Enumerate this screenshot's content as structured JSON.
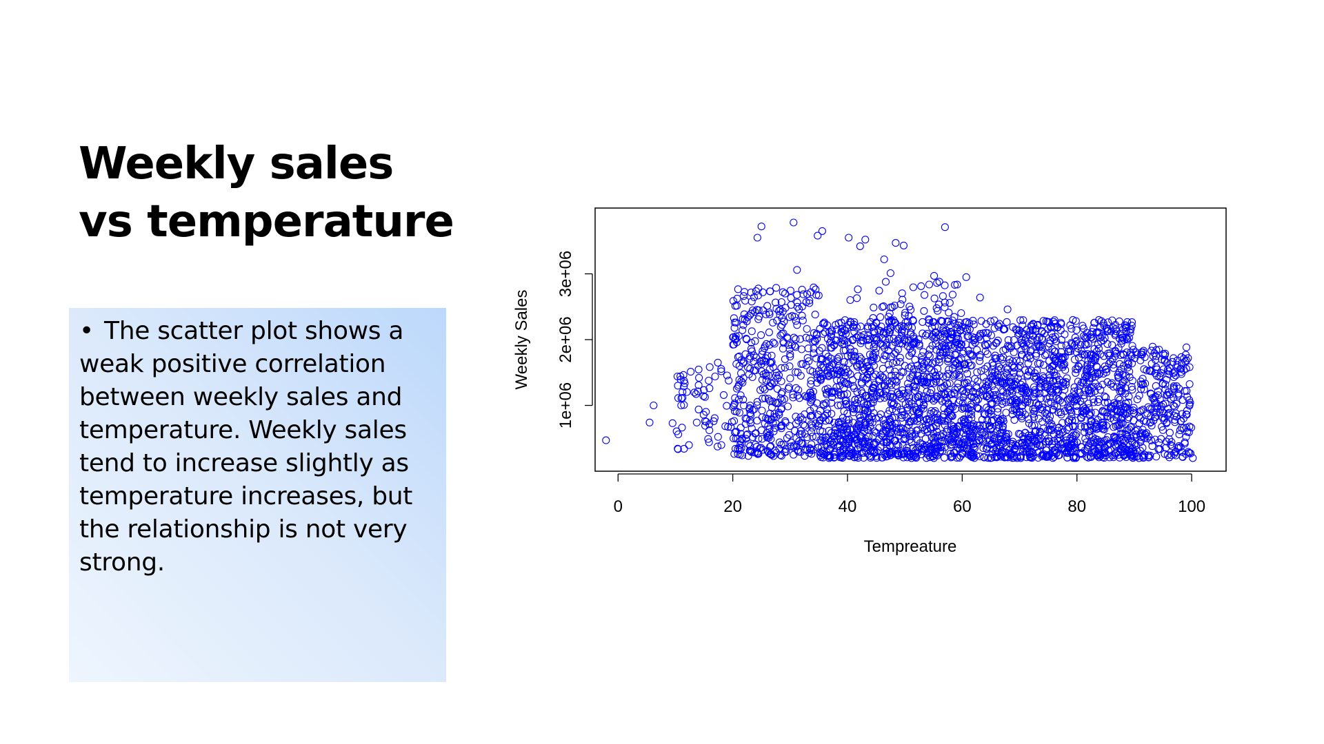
{
  "slide": {
    "title_line1": "Weekly sales",
    "title_line2": "vs temperature",
    "bullet_symbol": "•",
    "body_text": "The scatter plot shows a weak positive correlation between weekly sales and temperature. Weekly sales tend to increase slightly as temperature increases, but the relationship is not very strong."
  },
  "chart_data": {
    "type": "scatter",
    "title": "",
    "xlabel": "Tempreature",
    "ylabel": "Weekly Sales",
    "xlim": [
      -4,
      106
    ],
    "ylim": [
      0,
      4000000
    ],
    "x_ticks": [
      0,
      20,
      40,
      60,
      80,
      100
    ],
    "x_tick_labels": [
      "0",
      "20",
      "40",
      "60",
      "80",
      "100"
    ],
    "y_ticks": [
      1000000,
      2000000,
      3000000
    ],
    "y_tick_labels": [
      "1e+06",
      "2e+06",
      "3e+06"
    ],
    "grid": false,
    "legend": "none",
    "marker": "open-circle",
    "point_color": "#0000ff",
    "sample_points": [
      {
        "x": -2.1,
        "y": 470000
      },
      {
        "x": 5.5,
        "y": 740000
      },
      {
        "x": 6.2,
        "y": 1000000
      },
      {
        "x": 9.5,
        "y": 730000
      },
      {
        "x": 11,
        "y": 1000000
      },
      {
        "x": 17.4,
        "y": 1650000
      },
      {
        "x": 24.3,
        "y": 3550000
      },
      {
        "x": 25,
        "y": 3720000
      },
      {
        "x": 30.6,
        "y": 3780000
      },
      {
        "x": 31.2,
        "y": 3060000
      },
      {
        "x": 34.8,
        "y": 3580000
      },
      {
        "x": 35.6,
        "y": 3650000
      },
      {
        "x": 40.2,
        "y": 3550000
      },
      {
        "x": 42.2,
        "y": 3420000
      },
      {
        "x": 43.1,
        "y": 3520000
      },
      {
        "x": 46.4,
        "y": 3220000
      },
      {
        "x": 48.4,
        "y": 3470000
      },
      {
        "x": 49.8,
        "y": 3430000
      },
      {
        "x": 47.5,
        "y": 3010000
      },
      {
        "x": 55.1,
        "y": 2970000
      },
      {
        "x": 57,
        "y": 3710000
      },
      {
        "x": 60.7,
        "y": 2950000
      },
      {
        "x": 63.1,
        "y": 2640000
      },
      {
        "x": 67.9,
        "y": 2460000
      },
      {
        "x": 79.3,
        "y": 2300000
      },
      {
        "x": 86.3,
        "y": 2180000
      },
      {
        "x": 93.8,
        "y": 1750000
      },
      {
        "x": 96,
        "y": 1200000
      },
      {
        "x": 98.8,
        "y": 1220000
      },
      {
        "x": 99.2,
        "y": 920000
      },
      {
        "x": 100.2,
        "y": 200000
      },
      {
        "x": 10.5,
        "y": 560000
      }
    ],
    "cloud": [
      {
        "x_range": [
          10,
          20
        ],
        "y_range": [
          320000,
          1650000
        ],
        "count": 60
      },
      {
        "x_range": [
          20,
          35
        ],
        "y_range": [
          230000,
          2800000
        ],
        "count": 450
      },
      {
        "x_range": [
          35,
          90
        ],
        "y_range": [
          200000,
          2300000
        ],
        "count": 2400
      },
      {
        "x_range": [
          40,
          60
        ],
        "y_range": [
          1900000,
          2900000
        ],
        "count": 90
      },
      {
        "x_range": [
          90,
          100
        ],
        "y_range": [
          200000,
          1900000
        ],
        "count": 250
      }
    ]
  }
}
